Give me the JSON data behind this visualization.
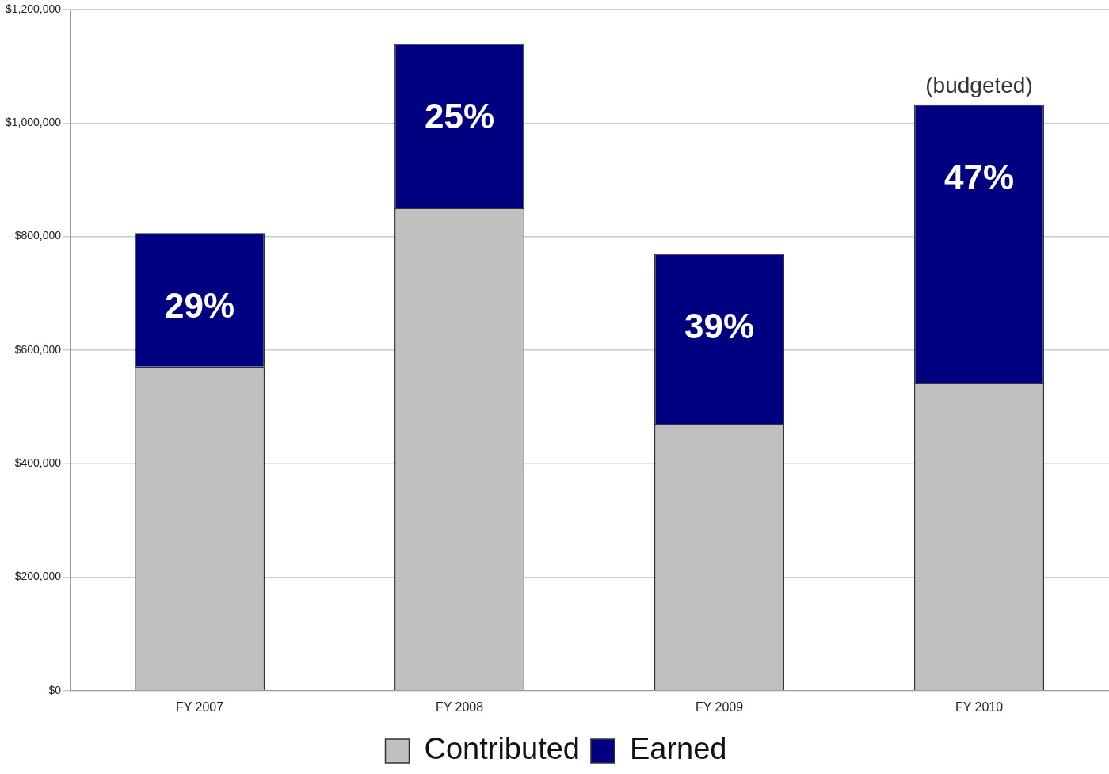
{
  "chart_data": {
    "type": "bar",
    "stacked": true,
    "categories": [
      "FY 2007",
      "FY 2008",
      "FY 2009",
      "FY 2010"
    ],
    "series": [
      {
        "name": "Contributed",
        "color": "#c0c0c0",
        "values": [
          571000,
          850000,
          470000,
          542000
        ]
      },
      {
        "name": "Earned",
        "color": "#000080",
        "values": [
          235000,
          290000,
          300000,
          491000
        ]
      }
    ],
    "ylim": [
      0,
      1200000
    ],
    "yticks": [
      {
        "value": 0,
        "label": "$0"
      },
      {
        "value": 200000,
        "label": "$200,000"
      },
      {
        "value": 400000,
        "label": "$400,000"
      },
      {
        "value": 600000,
        "label": "$600,000"
      },
      {
        "value": 800000,
        "label": "$800,000"
      },
      {
        "value": 1000000,
        "label": "$1,000,000"
      },
      {
        "value": 1200000,
        "label": "$1,200,000"
      }
    ],
    "grid": "y",
    "legend": "bottom",
    "annotations": [
      {
        "text": "29%",
        "x": "FY 2007",
        "y": 806000
      },
      {
        "text": "25%",
        "x": "FY 2008",
        "y": 1140000
      },
      {
        "text": "39%",
        "x": "FY 2009",
        "y": 770000
      },
      {
        "text": "47%",
        "x": "FY 2010",
        "y": 1033000
      },
      "(budgeted)"
    ]
  }
}
